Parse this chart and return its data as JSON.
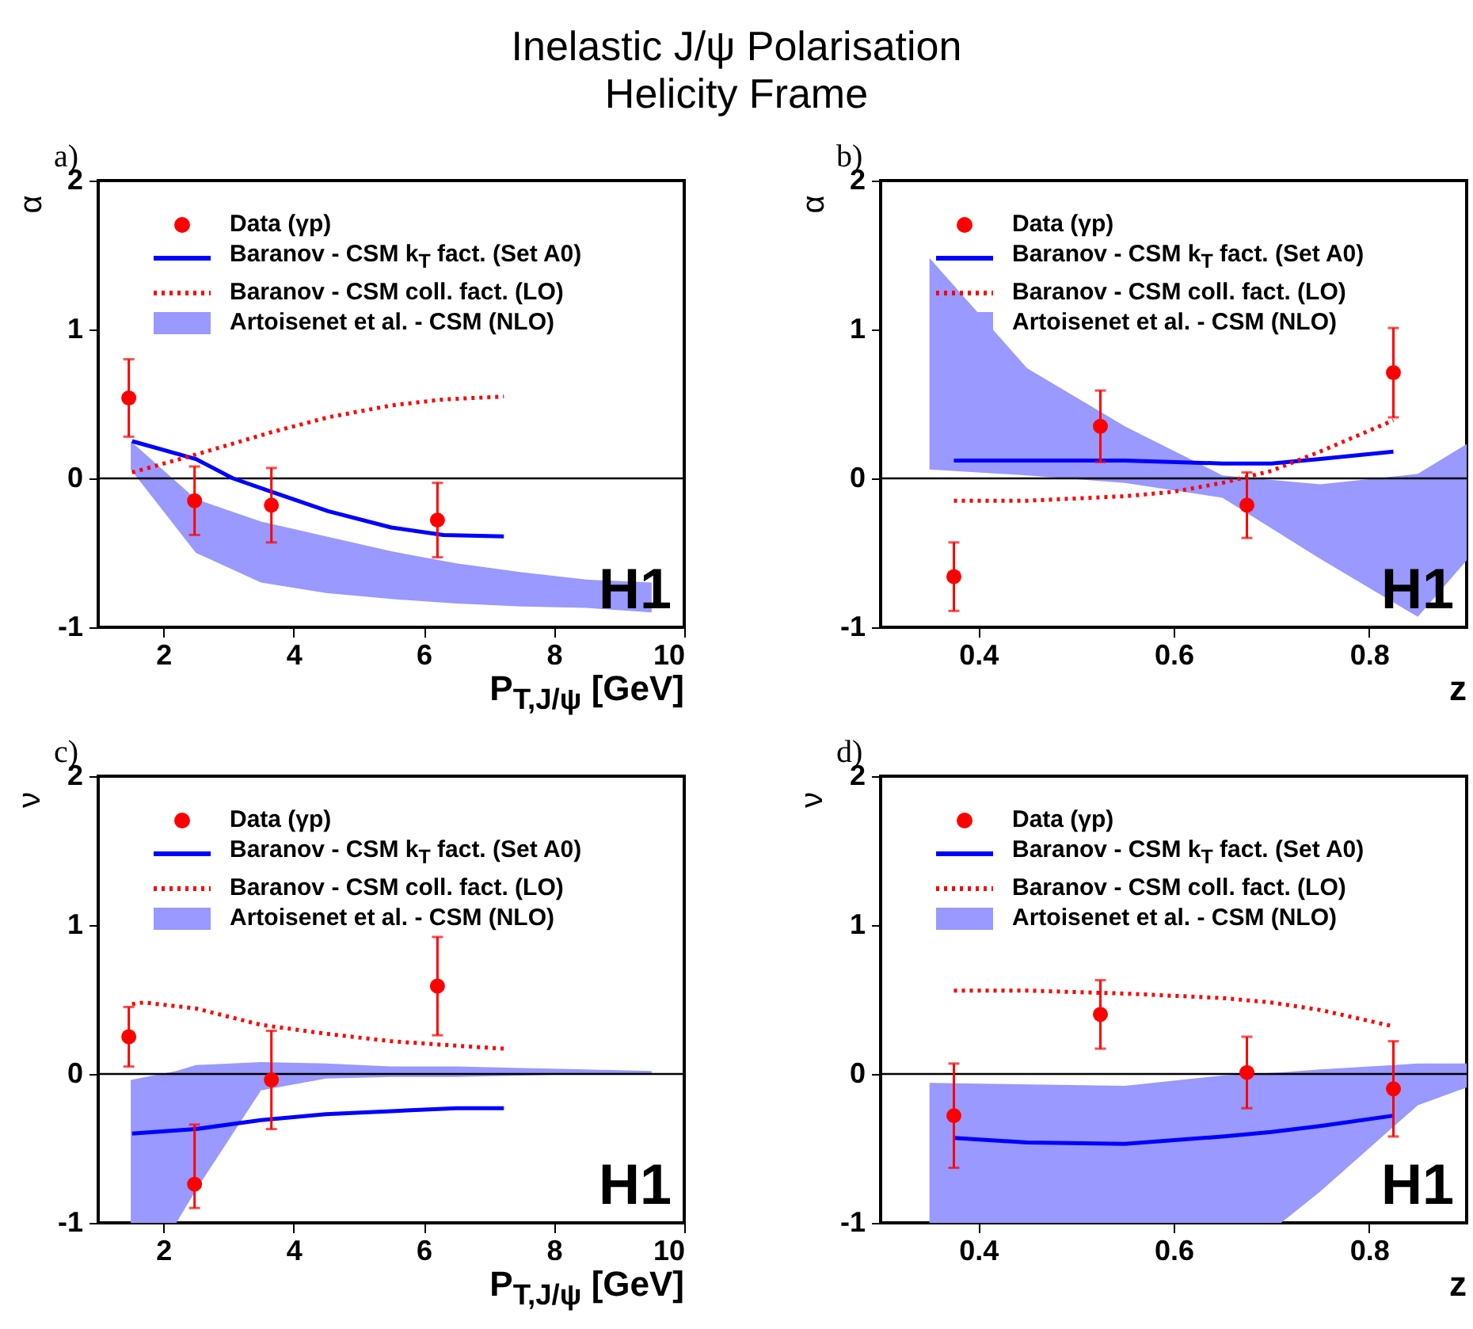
{
  "chart_data": [
    {
      "type": "line",
      "title": "Inelastic J/ψ Polarisation",
      "subtitle": "Helicity Frame",
      "xlabel": "P$_{T,J/ψ}$ [GeV]",
      "ylabel": "α",
      "annotations": [
        "a)",
        "H1"
      ],
      "xlim": [
        1,
        10
      ],
      "xticks": [
        2,
        4,
        6,
        8,
        10
      ],
      "ylim": [
        -1,
        2
      ],
      "yticks": [
        -1,
        0,
        1,
        2
      ],
      "legend": "top left",
      "ref_lines": [
        {
          "axis": "y",
          "value": 0,
          "color": "#000000"
        }
      ],
      "series": [
        {
          "name": "Data (γp)",
          "type": "scatter",
          "marker": "circle",
          "color": "#ff0000",
          "x": [
            1.47,
            2.48,
            3.66,
            6.21
          ],
          "values": [
            0.54,
            -0.15,
            -0.18,
            -0.28
          ],
          "errors": [
            0.26,
            0.23,
            0.25,
            0.25
          ]
        },
        {
          "name": "Baranov - CSM k$_{T}$ fact. (Set A0)",
          "type": "line",
          "line_style": "solid",
          "color": "#0000ff",
          "x": [
            1.52,
            2.5,
            3.07,
            3.66,
            4.53,
            5.5,
            6.3,
            7.23
          ],
          "values": [
            0.25,
            0.13,
            0.0,
            -0.09,
            -0.22,
            -0.33,
            -0.38,
            -0.39
          ]
        },
        {
          "name": "Baranov - CSM coll. fact. (LO)",
          "type": "line",
          "line_style": "dotted",
          "color": "#ff0000",
          "x": [
            1.52,
            2.5,
            3.66,
            4.53,
            5.5,
            6.3,
            7.23
          ],
          "values": [
            0.04,
            0.16,
            0.31,
            0.41,
            0.49,
            0.53,
            0.55
          ]
        },
        {
          "name": "Artoisenet et al. - CSM (NLO)",
          "type": "area",
          "color": "#9999ff",
          "x": [
            1.5,
            2.5,
            3.5,
            4.5,
            5.5,
            6.5,
            7.5,
            8.5,
            9.5
          ],
          "values": [
            null,
            null,
            null,
            null,
            null,
            null,
            null,
            null,
            null
          ],
          "lower": [
            0.06,
            -0.5,
            -0.7,
            -0.77,
            -0.81,
            -0.84,
            -0.86,
            -0.87,
            -0.9
          ],
          "upper": [
            0.25,
            -0.14,
            -0.29,
            -0.39,
            -0.49,
            -0.57,
            -0.63,
            -0.68,
            -0.7
          ]
        }
      ]
    },
    {
      "type": "line",
      "xlabel": "z",
      "ylabel": "α",
      "annotations": [
        "b)",
        "H1"
      ],
      "xlim": [
        0.3,
        0.9
      ],
      "xticks": [
        0.4,
        0.6,
        0.8
      ],
      "ylim": [
        -1,
        2
      ],
      "yticks": [
        -1,
        0,
        1,
        2
      ],
      "legend": "top left",
      "ref_lines": [
        {
          "axis": "y",
          "value": 0,
          "color": "#000000"
        }
      ],
      "series": [
        {
          "name": "Data (γp)",
          "type": "scatter",
          "marker": "circle",
          "color": "#ff0000",
          "x": [
            0.375,
            0.525,
            0.675,
            0.825
          ],
          "values": [
            -0.66,
            0.35,
            -0.18,
            0.71
          ],
          "errors": [
            0.23,
            0.24,
            0.22,
            0.3
          ]
        },
        {
          "name": "Baranov - CSM k$_{T}$ fact. (Set A0)",
          "type": "line",
          "line_style": "solid",
          "color": "#0000ff",
          "x": [
            0.375,
            0.45,
            0.55,
            0.65,
            0.7,
            0.75,
            0.825
          ],
          "values": [
            0.12,
            0.12,
            0.12,
            0.1,
            0.1,
            0.13,
            0.18
          ]
        },
        {
          "name": "Baranov - CSM coll. fact. (LO)",
          "type": "line",
          "line_style": "dotted",
          "color": "#ff0000",
          "x": [
            0.375,
            0.45,
            0.55,
            0.6,
            0.65,
            0.7,
            0.75,
            0.8,
            0.825
          ],
          "values": [
            -0.15,
            -0.15,
            -0.12,
            -0.09,
            -0.03,
            0.05,
            0.18,
            0.32,
            0.39
          ]
        },
        {
          "name": "Artoisenet et al. - CSM (NLO)",
          "type": "area",
          "color": "#9999ff",
          "x": [
            0.35,
            0.45,
            0.55,
            0.65,
            0.75,
            0.85,
            0.9
          ],
          "values": [
            null,
            null,
            null,
            null,
            null,
            null,
            null
          ],
          "lower": [
            0.06,
            0.02,
            -0.03,
            -0.13,
            -0.54,
            -0.93,
            -0.55
          ],
          "upper": [
            1.48,
            0.74,
            0.35,
            0.02,
            -0.04,
            0.03,
            0.23
          ]
        }
      ]
    },
    {
      "type": "line",
      "xlabel": "P$_{T,J/ψ}$ [GeV]",
      "ylabel": "ν",
      "annotations": [
        "c)",
        "H1"
      ],
      "xlim": [
        1,
        10
      ],
      "xticks": [
        2,
        4,
        6,
        8,
        10
      ],
      "ylim": [
        -1,
        2
      ],
      "yticks": [
        -1,
        0,
        1,
        2
      ],
      "legend": "top left",
      "ref_lines": [
        {
          "axis": "y",
          "value": 0,
          "color": "#000000"
        }
      ],
      "series": [
        {
          "name": "Data (γp)",
          "type": "scatter",
          "marker": "circle",
          "color": "#ff0000",
          "x": [
            1.47,
            2.48,
            3.66,
            6.21
          ],
          "values": [
            0.25,
            -0.74,
            -0.04,
            0.59
          ],
          "errors": [
            0.2,
            [
              -0.9,
              -0.34
            ],
            0.33,
            0.33
          ]
        },
        {
          "name": "Baranov - CSM k$_{T}$ fact. (Set A0)",
          "type": "line",
          "line_style": "solid",
          "color": "#0000ff",
          "x": [
            1.52,
            2.5,
            3.5,
            4.5,
            5.5,
            6.5,
            7.23
          ],
          "values": [
            -0.4,
            -0.37,
            -0.31,
            -0.27,
            -0.25,
            -0.23,
            -0.23
          ]
        },
        {
          "name": "Baranov - CSM coll. fact. (LO)",
          "type": "line",
          "line_style": "dotted",
          "color": "#ff0000",
          "x": [
            1.52,
            1.7,
            2.5,
            3.5,
            4.5,
            5.5,
            6.5,
            7.23
          ],
          "values": [
            0.47,
            0.48,
            0.44,
            0.33,
            0.27,
            0.22,
            0.19,
            0.17
          ]
        },
        {
          "name": "Artoisenet et al. - CSM (NLO)",
          "type": "area",
          "color": "#9999ff",
          "x": [
            1.5,
            2.2,
            2.5,
            3.5,
            4.5,
            5.5,
            6.5,
            7.5,
            8.5,
            9.5
          ],
          "values": [
            null,
            null,
            null,
            null,
            null,
            null,
            null,
            null,
            null,
            null
          ],
          "lower": [
            -1,
            -1,
            -0.78,
            -0.11,
            -0.03,
            -0.02,
            -0.02,
            -0.01,
            0,
            0
          ],
          "upper": [
            -0.04,
            0.02,
            0.06,
            0.08,
            0.07,
            0.05,
            0.05,
            0.04,
            0.03,
            0.02
          ]
        }
      ]
    },
    {
      "type": "line",
      "xlabel": "z",
      "ylabel": "ν",
      "annotations": [
        "d)",
        "H1"
      ],
      "xlim": [
        0.3,
        0.9
      ],
      "xticks": [
        0.4,
        0.6,
        0.8
      ],
      "ylim": [
        -1,
        2
      ],
      "yticks": [
        -1,
        0,
        1,
        2
      ],
      "legend": "top left",
      "ref_lines": [
        {
          "axis": "y",
          "value": 0,
          "color": "#000000"
        }
      ],
      "series": [
        {
          "name": "Data (γp)",
          "type": "scatter",
          "marker": "circle",
          "color": "#ff0000",
          "x": [
            0.375,
            0.525,
            0.675,
            0.825
          ],
          "values": [
            -0.28,
            0.4,
            0.01,
            -0.1
          ],
          "errors": [
            0.35,
            0.23,
            0.24,
            0.32
          ]
        },
        {
          "name": "Baranov - CSM k$_{T}$ fact. (Set A0)",
          "type": "line",
          "line_style": "solid",
          "color": "#0000ff",
          "x": [
            0.375,
            0.45,
            0.55,
            0.65,
            0.7,
            0.75,
            0.825
          ],
          "values": [
            -0.43,
            -0.46,
            -0.47,
            -0.42,
            -0.39,
            -0.35,
            -0.28
          ]
        },
        {
          "name": "Baranov - CSM coll. fact. (LO)",
          "type": "line",
          "line_style": "dotted",
          "color": "#ff0000",
          "x": [
            0.375,
            0.45,
            0.55,
            0.65,
            0.7,
            0.75,
            0.825
          ],
          "values": [
            0.56,
            0.56,
            0.54,
            0.51,
            0.48,
            0.43,
            0.32
          ]
        },
        {
          "name": "Artoisenet et al. - CSM (NLO)",
          "type": "area",
          "color": "#9999ff",
          "x": [
            0.35,
            0.55,
            0.65,
            0.71,
            0.75,
            0.85,
            0.9
          ],
          "values": [
            null,
            null,
            null,
            null,
            null,
            null,
            null
          ],
          "lower": [
            -1,
            -1,
            -1,
            -1,
            -0.79,
            -0.21,
            -0.09
          ],
          "upper": [
            -0.06,
            -0.08,
            -0.01,
            0.01,
            0.03,
            0.07,
            0.07
          ]
        }
      ]
    }
  ]
}
